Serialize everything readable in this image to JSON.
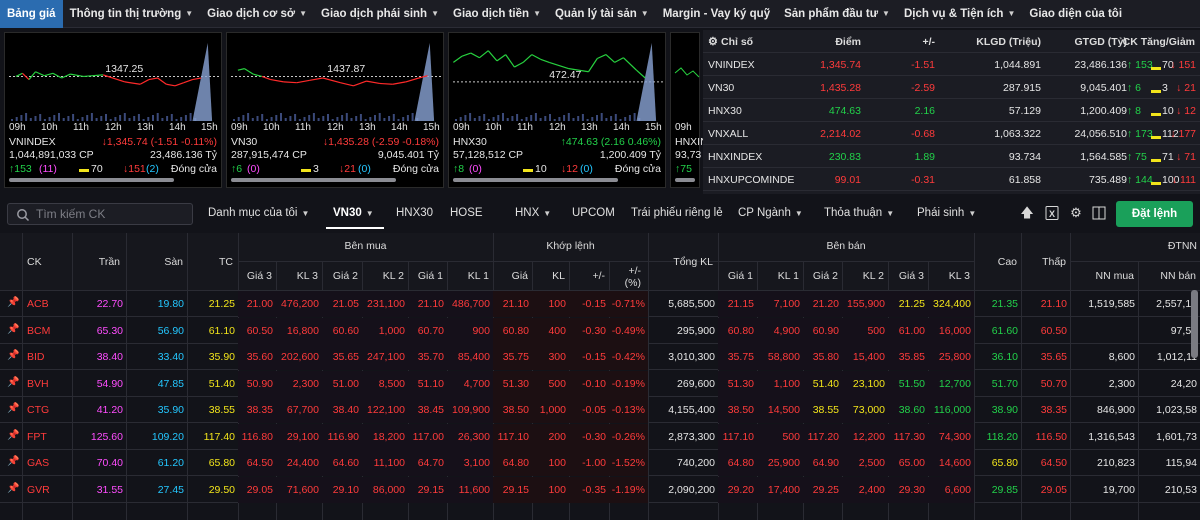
{
  "nav": {
    "items": [
      {
        "label": "Bảng giá",
        "chev": false
      },
      {
        "label": "Thông tin thị trường",
        "chev": true
      },
      {
        "label": "Giao dịch cơ sở",
        "chev": true
      },
      {
        "label": "Giao dịch phái sinh",
        "chev": true
      },
      {
        "label": "Giao dịch tiền",
        "chev": true
      },
      {
        "label": "Quản lý tài sản",
        "chev": true
      },
      {
        "label": "Margin - Vay ký quỹ",
        "chev": false
      },
      {
        "label": "Sản phẩm đầu tư",
        "chev": true
      },
      {
        "label": "Dịch vụ & Tiện ích",
        "chev": true
      },
      {
        "label": "Giao diện của tôi",
        "chev": false
      }
    ]
  },
  "charts": [
    {
      "name": "VNINDEX",
      "change": "↓1,345.74 (-1.51 -0.11%)",
      "volume": "1,044,891,033 CP",
      "value": "23,486.136 Tỷ",
      "up": "↑153",
      "ceil": "(11)",
      "flat": "70",
      "down": "↓151",
      "floor": "(2)",
      "status": "Đóng cửa",
      "ref": "1347.25",
      "ticks": [
        "09h",
        "10h",
        "11h",
        "12h",
        "13h",
        "14h",
        "15h"
      ]
    },
    {
      "name": "VN30",
      "change": "↓1,435.28 (-2.59 -0.18%)",
      "volume": "287,915,474 CP",
      "value": "9,045.401 Tỷ",
      "up": "↑6",
      "ceil": "(0)",
      "flat": "3",
      "down": "↓21",
      "floor": "(0)",
      "status": "Đóng cửa",
      "ref": "1437.87",
      "ticks": [
        "09h",
        "10h",
        "11h",
        "12h",
        "13h",
        "14h",
        "15h"
      ]
    },
    {
      "name": "HNX30",
      "change": "↑474.63 (2.16 0.46%)",
      "volume": "57,128,512 CP",
      "value": "1,200.409 Tỷ",
      "up": "↑8",
      "ceil": "(0)",
      "flat": "10",
      "down": "↓12",
      "floor": "(0)",
      "status": "Đóng cửa",
      "ref": "472.47",
      "ticks": [
        "09h",
        "10h",
        "11h",
        "12h",
        "13h",
        "14h",
        "15h"
      ]
    },
    {
      "name": "HNXINDEX",
      "volume": "93,73",
      "up": "↑75",
      "ticks": [
        "09h"
      ]
    }
  ],
  "index_table": {
    "headers": [
      "Chỉ số",
      "Điểm",
      "+/-",
      "KLGD (Triệu)",
      "GTGD (Tỷ)",
      "CK Tăng/Giảm"
    ],
    "rows": [
      {
        "name": "VNINDEX",
        "point": "1,345.74",
        "chg": "-1.51",
        "vol": "1,044.891",
        "val": "23,486.136",
        "up": "↑ 153",
        "flat": "70",
        "down": "↓ 151",
        "color": "red"
      },
      {
        "name": "VN30",
        "point": "1,435.28",
        "chg": "-2.59",
        "vol": "287.915",
        "val": "9,045.401",
        "up": "↑ 6",
        "flat": "3",
        "down": "↓ 21",
        "color": "red"
      },
      {
        "name": "HNX30",
        "point": "474.63",
        "chg": "2.16",
        "vol": "57.129",
        "val": "1,200.409",
        "up": "↑ 8",
        "flat": "10",
        "down": "↓ 12",
        "color": "green"
      },
      {
        "name": "VNXALL",
        "point": "2,214.02",
        "chg": "-0.68",
        "vol": "1,063.322",
        "val": "24,056.510",
        "up": "↑ 173",
        "flat": "112",
        "down": "↓ 177",
        "color": "red"
      },
      {
        "name": "HNXINDEX",
        "point": "230.83",
        "chg": "1.89",
        "vol": "93.734",
        "val": "1,564.585",
        "up": "↑ 75",
        "flat": "71",
        "down": "↓ 71",
        "color": "green"
      },
      {
        "name": "HNXUPCOMINDE",
        "point": "99.01",
        "chg": "-0.31",
        "vol": "61.858",
        "val": "735.489",
        "up": "↑ 144",
        "flat": "100",
        "down": "↓ 111",
        "color": "red"
      }
    ]
  },
  "toolbar": {
    "search_placeholder": "Tìm kiếm CK",
    "tabs": [
      "Danh mục của tôi",
      "VN30",
      "HNX30",
      "HOSE",
      "HNX",
      "UPCOM",
      "Trái phiếu riêng lẻ",
      "CP Ngành",
      "Thỏa thuận",
      "Phái sinh"
    ],
    "order_label": "Đặt lệnh"
  },
  "board": {
    "headers": {
      "ck": "CK",
      "ceil": "Trần",
      "floor": "Sàn",
      "ref": "TC",
      "buy": "Bên mua",
      "match": "Khớp lệnh",
      "total": "Tổng KL",
      "sell": "Bên bán",
      "high": "Cao",
      "low": "Thấp",
      "foreign": "ĐTNN",
      "p3": "Giá 3",
      "v3": "KL 3",
      "p2": "Giá 2",
      "v2": "KL 2",
      "p1": "Giá 1",
      "v1": "KL 1",
      "mp": "Giá",
      "mv": "KL",
      "chg": "+/-",
      "pct": "+/-\n(%)",
      "sp1": "Giá 1",
      "sv1": "KL 1",
      "sp2": "Giá 2",
      "sv2": "KL 2",
      "sp3": "Giá 3",
      "sv3": "KL 3",
      "nnb": "NN mua",
      "nns": "NN bán"
    },
    "rows": [
      {
        "ck": "ACB",
        "ceil": "22.70",
        "floor": "19.80",
        "ref": "21.25",
        "b3": "21.00",
        "bv3": "476,200",
        "b2": "21.05",
        "bv2": "231,100",
        "b1": "21.10",
        "bv1": "486,700",
        "mp": "21.10",
        "mv": "100",
        "chg": "-0.15",
        "pct": "-0.71%",
        "total": "5,685,500",
        "s1": "21.15",
        "sv1": "7,100",
        "s2": "21.20",
        "sv2": "155,900",
        "s3": "21.25",
        "sv3": "324,400",
        "high": "21.35",
        "low": "21.10",
        "nnb": "1,519,585",
        "nns": "2,557,10"
      },
      {
        "ck": "BCM",
        "ceil": "65.30",
        "floor": "56.90",
        "ref": "61.10",
        "b3": "60.50",
        "bv3": "16,800",
        "b2": "60.60",
        "bv2": "1,000",
        "b1": "60.70",
        "bv1": "900",
        "mp": "60.80",
        "mv": "400",
        "chg": "-0.30",
        "pct": "-0.49%",
        "total": "295,900",
        "s1": "60.80",
        "sv1": "4,900",
        "s2": "60.90",
        "sv2": "500",
        "s3": "61.00",
        "sv3": "16,000",
        "high": "61.60",
        "low": "60.50",
        "nnb": "",
        "nns": "97,50"
      },
      {
        "ck": "BID",
        "ceil": "38.40",
        "floor": "33.40",
        "ref": "35.90",
        "b3": "35.60",
        "bv3": "202,600",
        "b2": "35.65",
        "bv2": "247,100",
        "b1": "35.70",
        "bv1": "85,400",
        "mp": "35.75",
        "mv": "300",
        "chg": "-0.15",
        "pct": "-0.42%",
        "total": "3,010,300",
        "s1": "35.75",
        "sv1": "58,800",
        "s2": "35.80",
        "sv2": "15,400",
        "s3": "35.85",
        "sv3": "25,800",
        "high": "36.10",
        "low": "35.65",
        "nnb": "8,600",
        "nns": "1,012,11"
      },
      {
        "ck": "BVH",
        "ceil": "54.90",
        "floor": "47.85",
        "ref": "51.40",
        "b3": "50.90",
        "bv3": "2,300",
        "b2": "51.00",
        "bv2": "8,500",
        "b1": "51.10",
        "bv1": "4,700",
        "mp": "51.30",
        "mv": "500",
        "chg": "-0.10",
        "pct": "-0.19%",
        "total": "269,600",
        "s1": "51.30",
        "sv1": "1,100",
        "s2": "51.40",
        "sv2": "23,100",
        "s3": "51.50",
        "sv3": "12,700",
        "high": "51.70",
        "low": "50.70",
        "nnb": "2,300",
        "nns": "24,20"
      },
      {
        "ck": "CTG",
        "ceil": "41.20",
        "floor": "35.90",
        "ref": "38.55",
        "b3": "38.35",
        "bv3": "67,700",
        "b2": "38.40",
        "bv2": "122,100",
        "b1": "38.45",
        "bv1": "109,900",
        "mp": "38.50",
        "mv": "1,000",
        "chg": "-0.05",
        "pct": "-0.13%",
        "total": "4,155,400",
        "s1": "38.50",
        "sv1": "14,500",
        "s2": "38.55",
        "sv2": "73,000",
        "s3": "38.60",
        "sv3": "116,000",
        "high": "38.90",
        "low": "38.35",
        "nnb": "846,900",
        "nns": "1,023,58"
      },
      {
        "ck": "FPT",
        "ceil": "125.60",
        "floor": "109.20",
        "ref": "117.40",
        "b3": "116.80",
        "bv3": "29,100",
        "b2": "116.90",
        "bv2": "18,200",
        "b1": "117.00",
        "bv1": "26,300",
        "mp": "117.10",
        "mv": "200",
        "chg": "-0.30",
        "pct": "-0.26%",
        "total": "2,873,300",
        "s1": "117.10",
        "sv1": "500",
        "s2": "117.20",
        "sv2": "12,200",
        "s3": "117.30",
        "sv3": "74,300",
        "high": "118.20",
        "low": "116.50",
        "nnb": "1,316,543",
        "nns": "1,601,73"
      },
      {
        "ck": "GAS",
        "ceil": "70.40",
        "floor": "61.20",
        "ref": "65.80",
        "b3": "64.50",
        "bv3": "24,400",
        "b2": "64.60",
        "bv2": "11,100",
        "b1": "64.70",
        "bv1": "3,100",
        "mp": "64.80",
        "mv": "100",
        "chg": "-1.00",
        "pct": "-1.52%",
        "total": "740,200",
        "s1": "64.80",
        "sv1": "25,900",
        "s2": "64.90",
        "sv2": "2,500",
        "s3": "65.00",
        "sv3": "14,600",
        "high": "65.80",
        "low": "64.50",
        "nnb": "210,823",
        "nns": "115,94"
      },
      {
        "ck": "GVR",
        "ceil": "31.55",
        "floor": "27.45",
        "ref": "29.50",
        "b3": "29.05",
        "bv3": "71,600",
        "b2": "29.10",
        "bv2": "86,000",
        "b1": "29.15",
        "bv1": "11,600",
        "mp": "29.15",
        "mv": "100",
        "chg": "-0.35",
        "pct": "-1.19%",
        "total": "2,090,200",
        "s1": "29.20",
        "sv1": "17,400",
        "s2": "29.25",
        "sv2": "2,400",
        "s3": "29.30",
        "sv3": "6,600",
        "high": "29.85",
        "low": "29.05",
        "nnb": "19,700",
        "nns": "210,53"
      }
    ]
  }
}
